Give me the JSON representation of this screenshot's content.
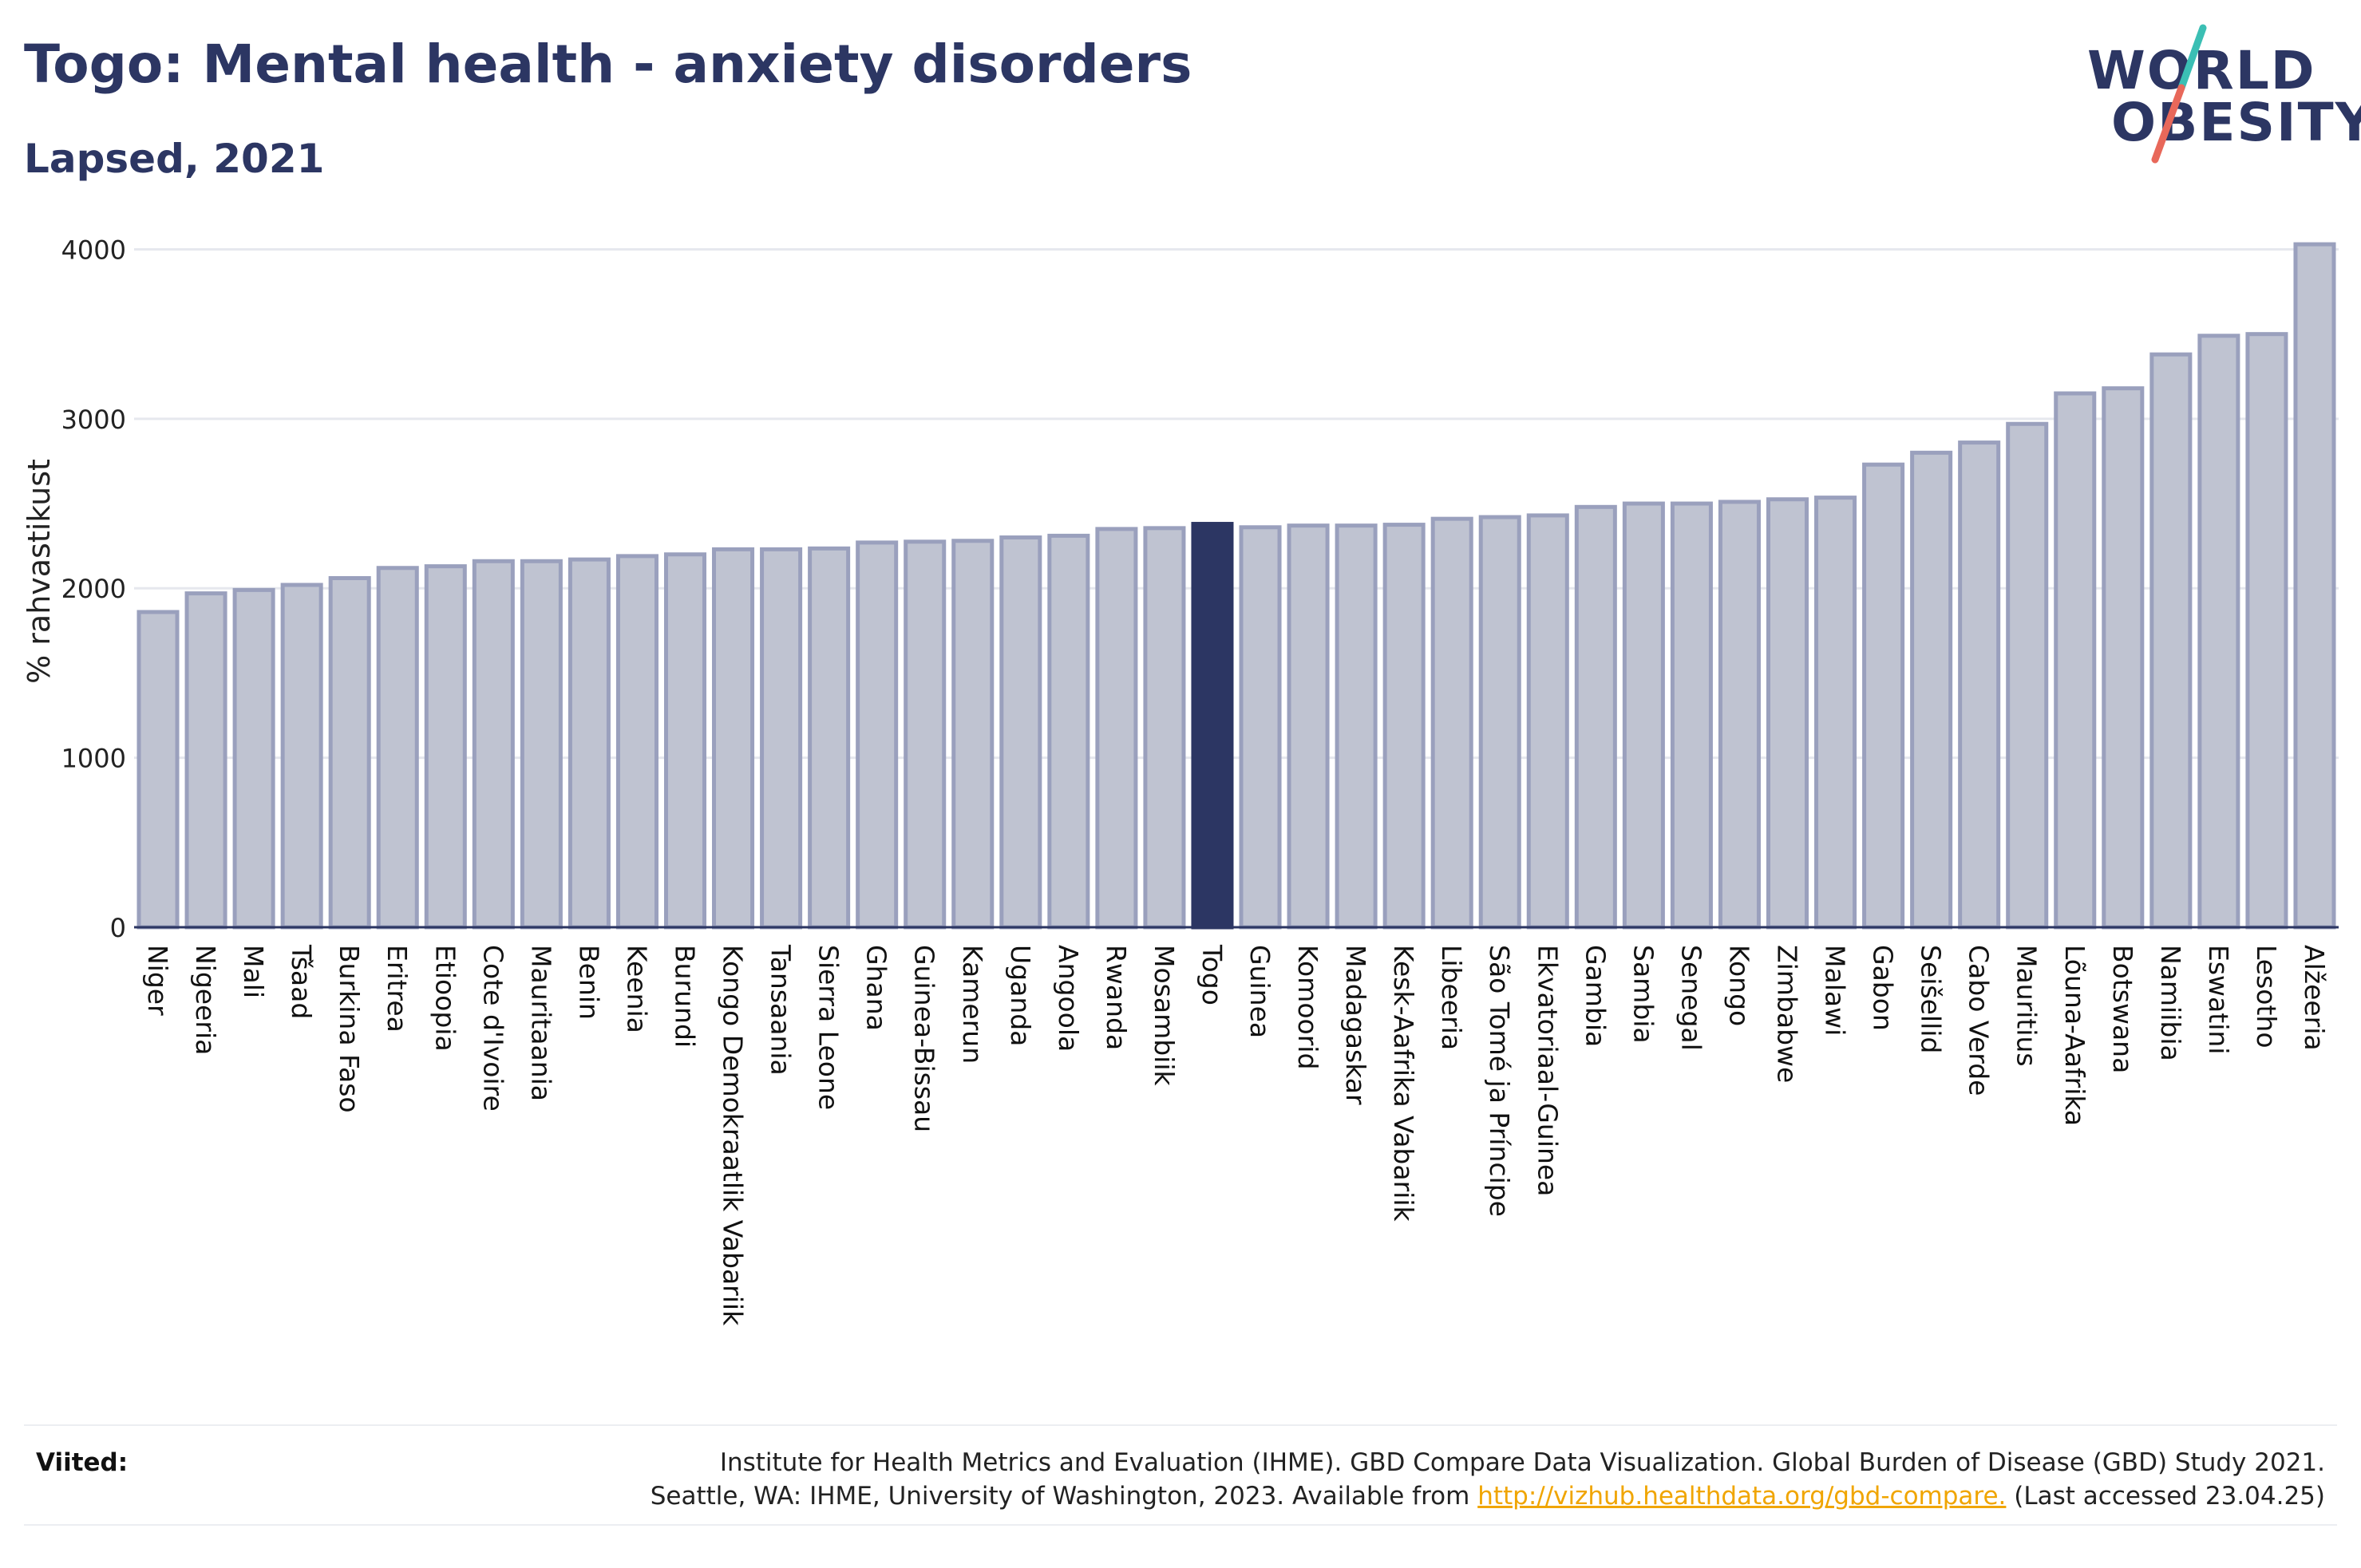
{
  "header": {
    "title": "Togo: Mental health - anxiety disorders",
    "subtitle": "Lapsed, 2021"
  },
  "logo": {
    "line1": "WORLD",
    "line2": "OBESITY",
    "colors": {
      "text": "#2c3663",
      "slash_top": "#3bbfb4",
      "slash_bottom": "#e8685a"
    }
  },
  "colors": {
    "bar": "#bfc3d1",
    "bar_edge": "#9aa0bd",
    "highlight": "#2c3663",
    "grid": "#e6e8ee",
    "axis": "#2c3663"
  },
  "chart_data": {
    "type": "bar",
    "title": "Togo: Mental health - anxiety disorders",
    "subtitle": "Lapsed, 2021",
    "ylabel": "% rahvastikust",
    "ylim": [
      0,
      4200
    ],
    "yticks": [
      0,
      1000,
      2000,
      3000,
      4000
    ],
    "grid": true,
    "highlight": "Togo",
    "categories": [
      "Niger",
      "Nigeeria",
      "Mali",
      "Tšaad",
      "Burkina Faso",
      "Eritrea",
      "Etioopia",
      "Cote d'Ivoire",
      "Mauritaania",
      "Benin",
      "Keenia",
      "Burundi",
      "Kongo Demokraatlik Vabariik",
      "Tansaania",
      "Sierra Leone",
      "Ghana",
      "Guinea-Bissau",
      "Kamerun",
      "Uganda",
      "Angoola",
      "Rwanda",
      "Mosambiik",
      "Togo",
      "Guinea",
      "Komoorid",
      "Madagaskar",
      "Kesk-Aafrika Vabariik",
      "Libeeria",
      "São Tomé ja Príncipe",
      "Ekvatoriaal-Guinea",
      "Gambia",
      "Sambia",
      "Senegal",
      "Kongo",
      "Zimbabwe",
      "Malawi",
      "Gabon",
      "Seišellid",
      "Cabo Verde",
      "Mauritius",
      "Lõuna-Aafrika",
      "Botswana",
      "Namiibia",
      "Eswatini",
      "Lesotho",
      "Alžeeria"
    ],
    "values": [
      1860,
      1970,
      1990,
      2020,
      2060,
      2120,
      2130,
      2160,
      2160,
      2170,
      2190,
      2200,
      2230,
      2230,
      2235,
      2270,
      2275,
      2280,
      2300,
      2310,
      2350,
      2355,
      2380,
      2360,
      2370,
      2370,
      2375,
      2410,
      2420,
      2430,
      2480,
      2500,
      2500,
      2510,
      2525,
      2535,
      2730,
      2800,
      2860,
      2970,
      3150,
      3180,
      3380,
      3490,
      3500,
      4030
    ]
  },
  "source": {
    "label": "Viited:",
    "line1": "Institute for Health Metrics and Evaluation (IHME). GBD Compare Data Visualization. Global Burden of Disease (GBD) Study 2021.",
    "line2_prefix": "Seattle, WA: IHME, University of Washington, 2023. Available from ",
    "link": "http://vizhub.healthdata.org/gbd-compare.",
    "line2_suffix": " (Last accessed 23.04.25)"
  }
}
